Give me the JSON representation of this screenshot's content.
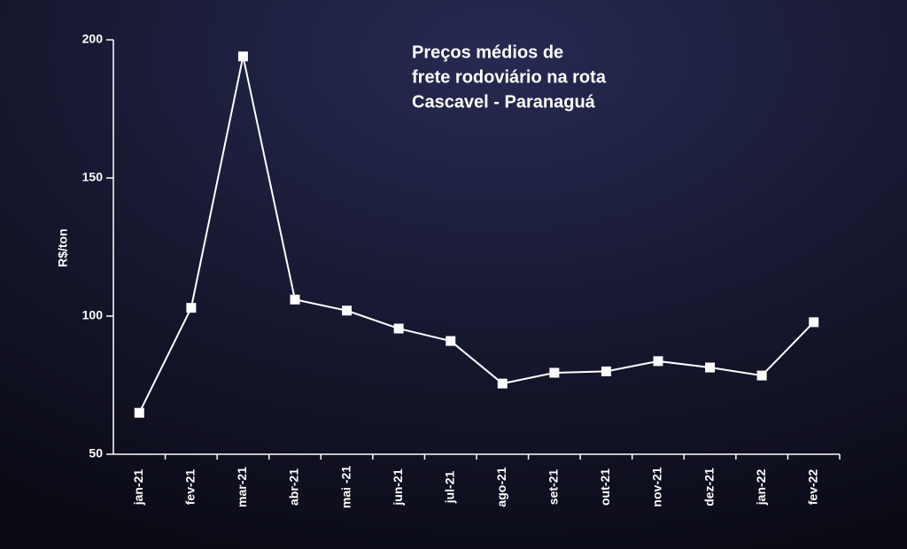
{
  "chart_data": {
    "type": "line",
    "title": [
      "Preços médios de",
      "frete rodoviário na rota",
      "Cascavel - Paranaguá"
    ],
    "y_label": "R$/ton",
    "categories": [
      "jan-21",
      "fev-21",
      "mar-21",
      "abr-21",
      "mai -21",
      "jun-21",
      "jul-21",
      "ago-21",
      "set-21",
      "out-21",
      "nov-21",
      "dez-21",
      "jan-22",
      "fev-22"
    ],
    "values": [
      65,
      103,
      194,
      106,
      102,
      95.5,
      91,
      75.6,
      79.5,
      80,
      83.7,
      81.4,
      78.5,
      97.8
    ],
    "color": "#ffffff",
    "ylim": [
      50,
      200
    ],
    "yticks": [
      50,
      100,
      150,
      200
    ],
    "grid": false
  }
}
